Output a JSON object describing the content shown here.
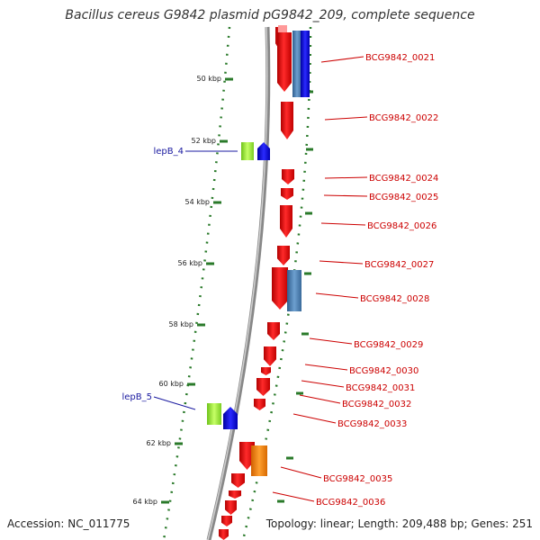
{
  "title": "Bacillus cereus G9842 plasmid pG9842_209, complete sequence",
  "footer": {
    "accession": "Accession: NC_011775",
    "summary": "Topology: linear; Length: 209,488 bp; Genes: 251"
  },
  "colors": {
    "cds_forward": "#ff0000",
    "cds_steel": "#4a7fb5",
    "cds_blue": "#0000ee",
    "cds_orange": "#ff8800",
    "signal_green": "#99ee33",
    "signal_blue": "#0000ee",
    "backbone": "#888888",
    "gc_ticks": "#2a7a2a",
    "gene_label": "#cc0000",
    "signal_label": "#1a1aa0"
  },
  "ruler": {
    "unit": "kbp",
    "ticks": [
      {
        "value": 50,
        "label": "50 kbp"
      },
      {
        "value": 52,
        "label": "52 kbp"
      },
      {
        "value": 54,
        "label": "54 kbp"
      },
      {
        "value": 56,
        "label": "56 kbp"
      },
      {
        "value": 58,
        "label": "58 kbp"
      },
      {
        "value": 60,
        "label": "60 kbp"
      },
      {
        "value": 62,
        "label": "62 kbp"
      },
      {
        "value": 64,
        "label": "64 kbp"
      }
    ]
  },
  "gene_labels": [
    "BCG9842_0021",
    "BCG9842_0022",
    "BCG9842_0024",
    "BCG9842_0025",
    "BCG9842_0026",
    "BCG9842_0027",
    "BCG9842_0028",
    "BCG9842_0029",
    "BCG9842_0030",
    "BCG9842_0031",
    "BCG9842_0032",
    "BCG9842_0033",
    "BCG9842_0035",
    "BCG9842_0036"
  ],
  "signal_labels": [
    "lepB_4",
    "lepB_5"
  ]
}
